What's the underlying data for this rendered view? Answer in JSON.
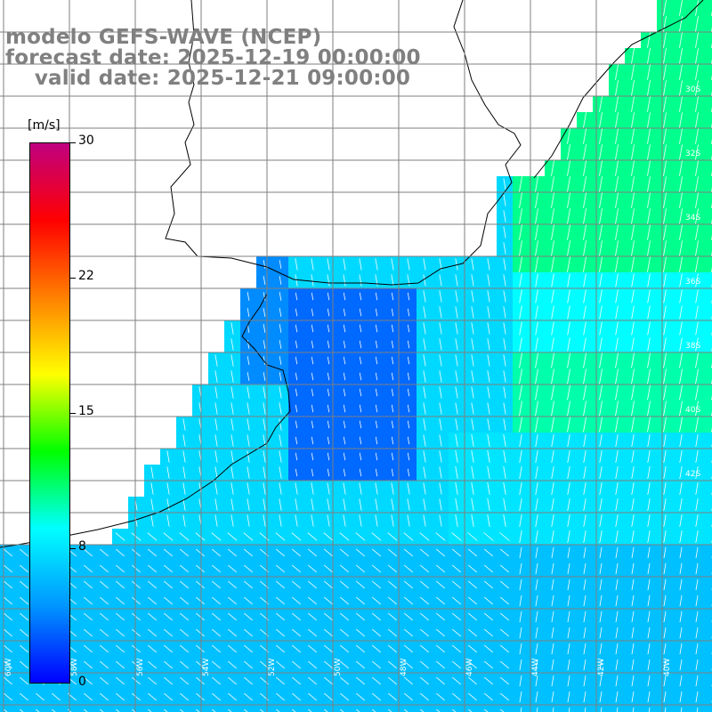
{
  "title": {
    "line1": "modelo GEFS-WAVE (NCEP)",
    "line2": "forecast date: 2025-12-19 00:00:00",
    "line3": "    valid date: 2025-12-21 09:00:00"
  },
  "colorbar": {
    "unit": "[m/s]",
    "ticks": [
      "30",
      "22",
      "15",
      "8",
      "0"
    ],
    "min": 0,
    "max": 30,
    "colors": [
      "#0000ff",
      "#0096ff",
      "#00ffff",
      "#00ff00",
      "#ffff00",
      "#ff8000",
      "#ff0000",
      "#c00080"
    ]
  },
  "lat_labels": [
    "30S",
    "32S",
    "34S",
    "36S",
    "38S",
    "40S",
    "42S"
  ],
  "lon_labels": [
    "60W",
    "58W",
    "56W",
    "54W",
    "52W",
    "50W",
    "48W",
    "46W",
    "44W",
    "42W",
    "40W"
  ],
  "field": {
    "variable": "wind speed",
    "description_colors": {
      "land": "#ffffff",
      "grid": "#7f7f7f",
      "coast": "#000000",
      "arrow": "#ffffff"
    }
  }
}
